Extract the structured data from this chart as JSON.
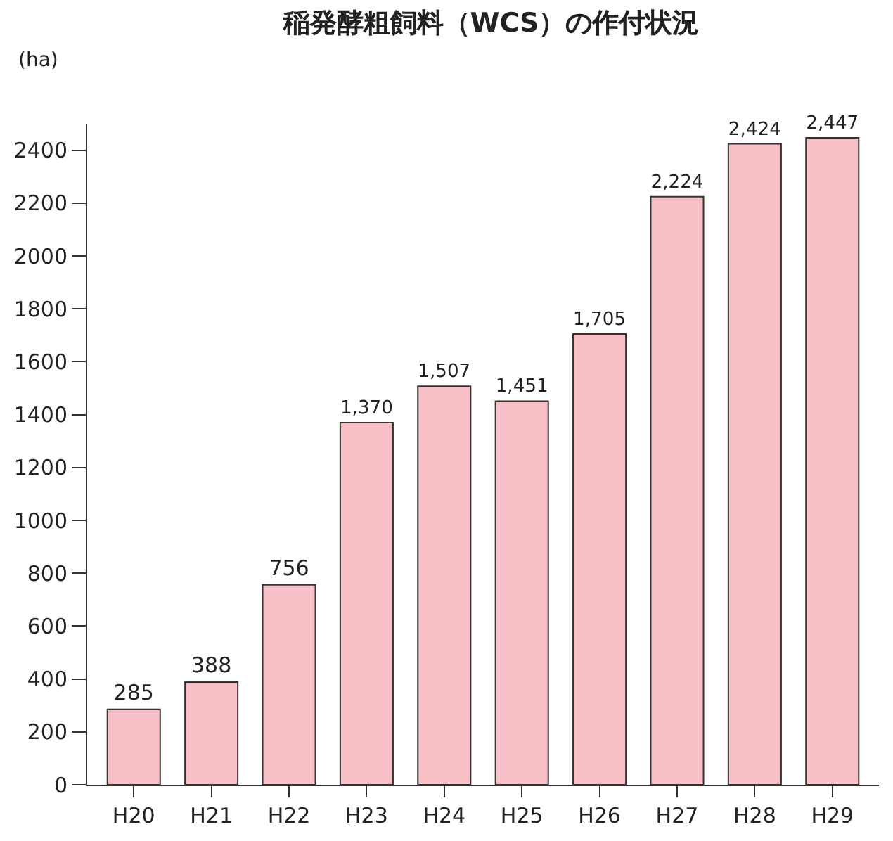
{
  "chart_data": {
    "type": "bar",
    "title": "稲発酵粗飼料（WCS）の作付状況",
    "ylabel": "(ha)",
    "categories": [
      "H20",
      "H21",
      "H22",
      "H23",
      "H24",
      "H25",
      "H26",
      "H27",
      "H28",
      "H29"
    ],
    "values": [
      285,
      388,
      756,
      1370,
      1507,
      1451,
      1705,
      2224,
      2424,
      2447
    ],
    "value_labels": [
      "285",
      "388",
      "756",
      "1,370",
      "1,507",
      "1,451",
      "1,705",
      "2,224",
      "2,424",
      "2,447"
    ],
    "color": "#f7bfc6",
    "ylim": [
      0,
      2500
    ],
    "yticks": [
      0,
      200,
      400,
      600,
      800,
      1000,
      1200,
      1400,
      1600,
      1800,
      2000,
      2200,
      2400
    ]
  }
}
